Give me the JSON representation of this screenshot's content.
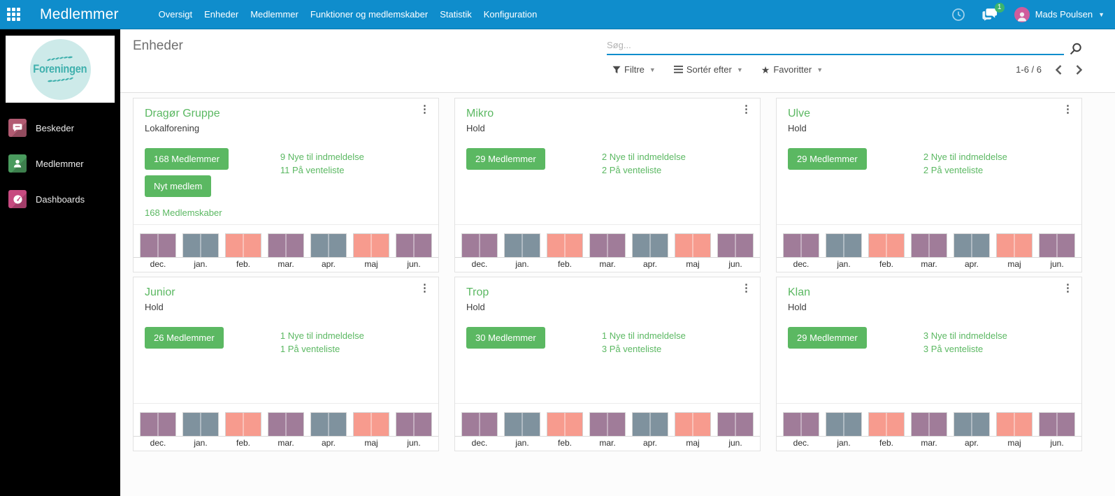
{
  "colors": {
    "primary_blue": "#0f8dcc",
    "green": "#5bb862",
    "sidebar_bg": "#000000",
    "badge_green": "#3cb46e",
    "avatar_pink": "#cf5c9c",
    "logo_teal": "#3fb0ad",
    "logo_circle": "#cdeae9",
    "bar_mauve": "#a07c99",
    "bar_gray": "#7f929e",
    "bar_salmon": "#f79b8e"
  },
  "navbar": {
    "app_title": "Medlemmer",
    "menu": [
      "Oversigt",
      "Enheder",
      "Medlemmer",
      "Funktioner og medlemskaber",
      "Statistik",
      "Konfiguration"
    ],
    "messages_badge": "1",
    "user_name": "Mads Poulsen"
  },
  "sidebar": {
    "logo_text": "Foreningen",
    "items": [
      {
        "label": "Beskeder",
        "icon": "chat",
        "color": "#b25b72"
      },
      {
        "label": "Medlemmer",
        "icon": "person",
        "color": "#4a9b5e"
      },
      {
        "label": "Dashboards",
        "icon": "gauge",
        "color": "#c74a80"
      }
    ]
  },
  "header": {
    "title": "Enheder",
    "search_placeholder": "Søg...",
    "filters": {
      "filter_label": "Filtre",
      "sort_label": "Sortér efter",
      "favorites_label": "Favoritter"
    },
    "pager_value": "1-6 / 6"
  },
  "cards": [
    {
      "title": "Dragør Gruppe",
      "subtitle": "Lokalforening",
      "buttons": [
        "168 Medlemmer",
        "Nyt medlem"
      ],
      "link": "168 Medlemskaber",
      "stats": [
        "9 Nye til indmeldelse",
        "11 På venteliste"
      ]
    },
    {
      "title": "Mikro",
      "subtitle": "Hold",
      "buttons": [
        "29 Medlemmer"
      ],
      "stats": [
        "2 Nye til indmeldelse",
        "2 På venteliste"
      ]
    },
    {
      "title": "Ulve",
      "subtitle": "Hold",
      "buttons": [
        "29 Medlemmer"
      ],
      "stats": [
        "2 Nye til indmeldelse",
        "2 På venteliste"
      ]
    },
    {
      "title": "Junior",
      "subtitle": "Hold",
      "buttons": [
        "26 Medlemmer"
      ],
      "stats": [
        "1 Nye til indmeldelse",
        "1 På venteliste"
      ]
    },
    {
      "title": "Trop",
      "subtitle": "Hold",
      "buttons": [
        "30 Medlemmer"
      ],
      "stats": [
        "1 Nye til indmeldelse",
        "3 På venteliste"
      ]
    },
    {
      "title": "Klan",
      "subtitle": "Hold",
      "buttons": [
        "29 Medlemmer"
      ],
      "stats": [
        "3 Nye til indmeldelse",
        "3 På venteliste"
      ]
    }
  ],
  "chart_data": {
    "type": "bar",
    "categories": [
      "dec.",
      "jan.",
      "feb.",
      "mar.",
      "apr.",
      "maj",
      "jun."
    ],
    "values": [
      1,
      1,
      1,
      1,
      1,
      1,
      1
    ],
    "bar_colors": [
      "#a07c99",
      "#7f929e",
      "#f79b8e",
      "#a07c99",
      "#7f929e",
      "#f79b8e",
      "#a07c99"
    ],
    "title": "",
    "xlabel": "",
    "ylabel": "",
    "ylim": [
      0,
      1
    ],
    "grid": false,
    "legend": false,
    "note": "identical uniform full-height monthly bars shown at the bottom of every unit card"
  }
}
